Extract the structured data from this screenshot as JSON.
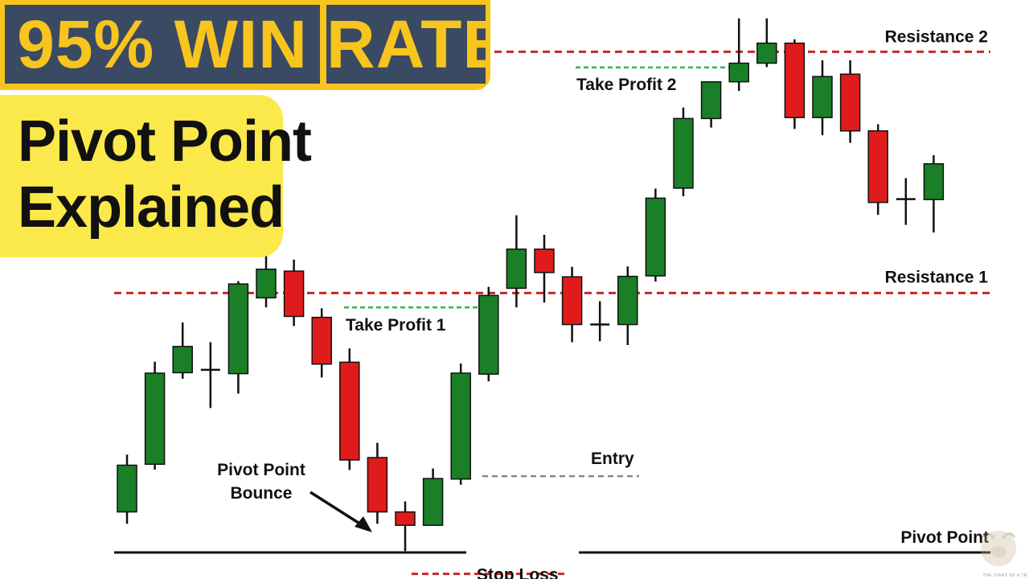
{
  "title": {
    "left": "95% WIN",
    "right": "RATE"
  },
  "subtitle": {
    "line1": "Pivot Point",
    "line2": "Explained"
  },
  "watermark_text": "THE DIARY OF A TR",
  "chart_data": {
    "type": "candlestick",
    "xlabel": "",
    "ylabel": "",
    "ylim": [
      0,
      100
    ],
    "colors": {
      "bullish": "#1a7f27",
      "bearish": "#e01b1b",
      "neutral": "#111111",
      "level_line": "#c62828",
      "take_profit_line": "#2fb84a",
      "entry_line": "#888888",
      "pivot_line": "#111111"
    },
    "candles": [
      {
        "o": 8.5,
        "h": 20.5,
        "l": 6.0,
        "c": 18.3,
        "dir": "up"
      },
      {
        "o": 18.5,
        "h": 40.0,
        "l": 17.4,
        "c": 37.6,
        "dir": "up"
      },
      {
        "o": 37.7,
        "h": 48.2,
        "l": 36.4,
        "c": 43.2,
        "dir": "up"
      },
      {
        "o": 38.3,
        "h": 44.1,
        "l": 30.3,
        "c": 38.3,
        "dir": "doji"
      },
      {
        "o": 37.5,
        "h": 56.9,
        "l": 33.3,
        "c": 56.3,
        "dir": "up"
      },
      {
        "o": 53.4,
        "h": 67.0,
        "l": 51.4,
        "c": 59.4,
        "dir": "up"
      },
      {
        "o": 59.0,
        "h": 61.4,
        "l": 47.5,
        "c": 49.5,
        "dir": "down"
      },
      {
        "o": 49.3,
        "h": 51.2,
        "l": 36.7,
        "c": 39.5,
        "dir": "down"
      },
      {
        "o": 39.9,
        "h": 42.8,
        "l": 17.3,
        "c": 19.4,
        "dir": "down"
      },
      {
        "o": 19.9,
        "h": 23.0,
        "l": 6.0,
        "c": 8.5,
        "dir": "down"
      },
      {
        "o": 8.5,
        "h": 10.7,
        "l": 0.3,
        "c": 5.7,
        "dir": "down"
      },
      {
        "o": 5.7,
        "h": 17.6,
        "l": 5.7,
        "c": 15.5,
        "dir": "up"
      },
      {
        "o": 15.4,
        "h": 39.6,
        "l": 14.2,
        "c": 37.6,
        "dir": "up"
      },
      {
        "o": 37.4,
        "h": 55.7,
        "l": 35.9,
        "c": 53.9,
        "dir": "up"
      },
      {
        "o": 55.4,
        "h": 70.7,
        "l": 51.4,
        "c": 63.6,
        "dir": "up"
      },
      {
        "o": 63.6,
        "h": 66.6,
        "l": 52.4,
        "c": 58.7,
        "dir": "down"
      },
      {
        "o": 57.8,
        "h": 59.9,
        "l": 44.1,
        "c": 47.8,
        "dir": "down"
      },
      {
        "o": 47.8,
        "h": 52.7,
        "l": 44.3,
        "c": 47.8,
        "dir": "doji"
      },
      {
        "o": 47.8,
        "h": 60.0,
        "l": 43.5,
        "c": 57.9,
        "dir": "up"
      },
      {
        "o": 58.0,
        "h": 76.3,
        "l": 56.8,
        "c": 74.3,
        "dir": "up"
      },
      {
        "o": 76.4,
        "h": 93.3,
        "l": 74.7,
        "c": 91.0,
        "dir": "up"
      },
      {
        "o": 91.0,
        "h": 98.7,
        "l": 89.1,
        "c": 98.7,
        "dir": "up"
      },
      {
        "o": 98.7,
        "h": 112.0,
        "l": 96.8,
        "c": 102.6,
        "dir": "up"
      },
      {
        "o": 102.6,
        "h": 112.0,
        "l": 101.8,
        "c": 106.8,
        "dir": "up"
      },
      {
        "o": 106.8,
        "h": 107.6,
        "l": 88.8,
        "c": 91.2,
        "dir": "down"
      },
      {
        "o": 91.2,
        "h": 103.2,
        "l": 87.5,
        "c": 99.8,
        "dir": "up"
      },
      {
        "o": 100.3,
        "h": 103.2,
        "l": 85.9,
        "c": 88.4,
        "dir": "down"
      },
      {
        "o": 88.4,
        "h": 89.8,
        "l": 70.8,
        "c": 73.4,
        "dir": "down"
      },
      {
        "o": 74.1,
        "h": 78.5,
        "l": 68.7,
        "c": 74.1,
        "dir": "doji"
      },
      {
        "o": 74.0,
        "h": 83.3,
        "l": 67.1,
        "c": 81.5,
        "dir": "up"
      }
    ],
    "levels": [
      {
        "name": "Resistance 2",
        "y": 105.0,
        "style": "dashed-red",
        "label_side": "right"
      },
      {
        "name": "Resistance 1",
        "y": 54.4,
        "style": "dashed-red",
        "label_side": "right"
      },
      {
        "name": "Pivot Point",
        "y": 0.0,
        "style": "solid-black",
        "label_side": "right"
      },
      {
        "name": "Stop Loss",
        "y": -4.5,
        "style": "dashed-red-short",
        "label_side": "center"
      },
      {
        "name": "Entry",
        "y": 16.0,
        "style": "dashed-gray-short",
        "label_side": "center"
      },
      {
        "name": "Take Profit 1",
        "y": 51.4,
        "style": "dashed-green-short",
        "label_side": "center"
      },
      {
        "name": "Take Profit 2",
        "y": 101.7,
        "style": "dashed-green-short",
        "label_side": "center"
      }
    ],
    "annotations": [
      {
        "text_line1": "Pivot Point",
        "text_line2": "Bounce",
        "points_to_candle": 10
      }
    ]
  }
}
